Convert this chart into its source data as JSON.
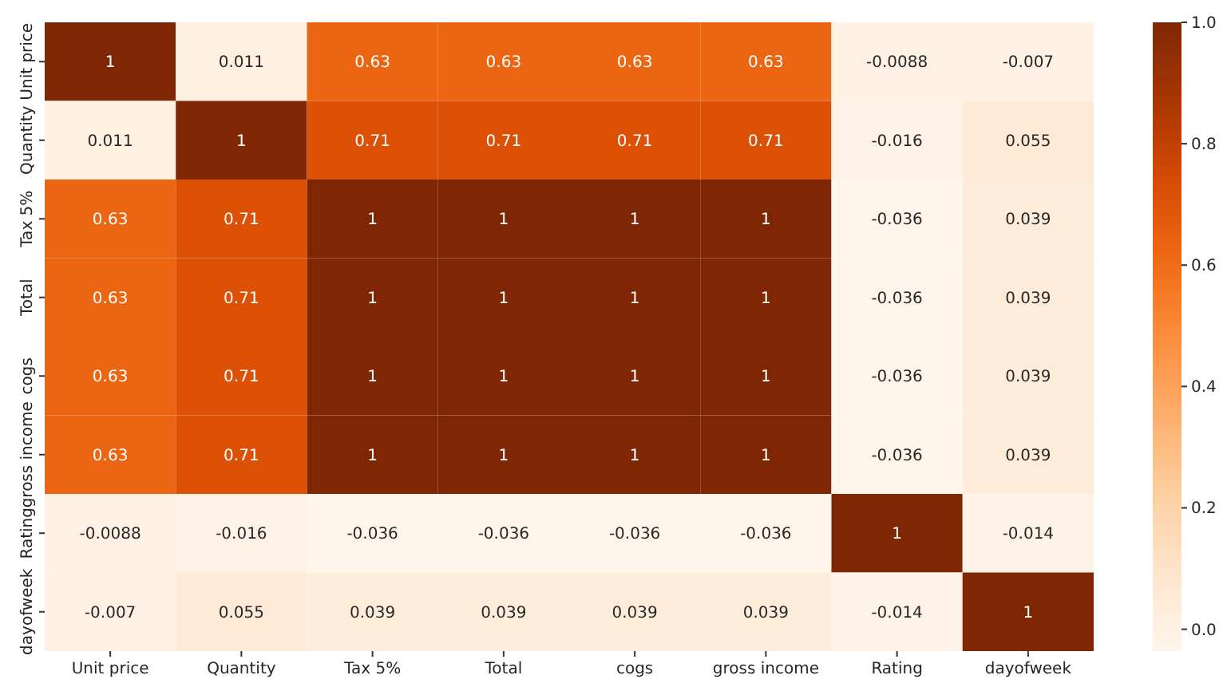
{
  "chart_data": {
    "type": "heatmap",
    "categories": [
      "Unit price",
      "Quantity",
      "Tax 5%",
      "Total",
      "cogs",
      "gross income",
      "Rating",
      "dayofweek"
    ],
    "y_categories": [
      "Unit price",
      "Quantity",
      "Tax 5%",
      "Total",
      "cogs",
      "gross income",
      "Rating",
      "dayofweek"
    ],
    "cells": [
      [
        1,
        0.011,
        0.63,
        0.63,
        0.63,
        0.63,
        -0.0088,
        -0.007
      ],
      [
        0.011,
        1,
        0.71,
        0.71,
        0.71,
        0.71,
        -0.016,
        0.055
      ],
      [
        0.63,
        0.71,
        1,
        1,
        1,
        1,
        -0.036,
        0.039
      ],
      [
        0.63,
        0.71,
        1,
        1,
        1,
        1,
        -0.036,
        0.039
      ],
      [
        0.63,
        0.71,
        1,
        1,
        1,
        1,
        -0.036,
        0.039
      ],
      [
        0.63,
        0.71,
        1,
        1,
        1,
        1,
        -0.036,
        0.039
      ],
      [
        -0.0088,
        -0.016,
        -0.036,
        -0.036,
        -0.036,
        -0.036,
        1,
        -0.014
      ],
      [
        -0.007,
        0.055,
        0.039,
        0.039,
        0.039,
        0.039,
        -0.014,
        1
      ]
    ],
    "data_labels": true,
    "clim": [
      -0.036,
      1
    ],
    "cticks": [
      {
        "value": 0,
        "label": "0.0"
      },
      {
        "value": 0.2,
        "label": "0.2"
      },
      {
        "value": 0.4,
        "label": "0.4"
      },
      {
        "value": 0.6,
        "label": "0.6"
      },
      {
        "value": 0.8,
        "label": "0.8"
      },
      {
        "value": 1,
        "label": "1.0"
      }
    ]
  }
}
